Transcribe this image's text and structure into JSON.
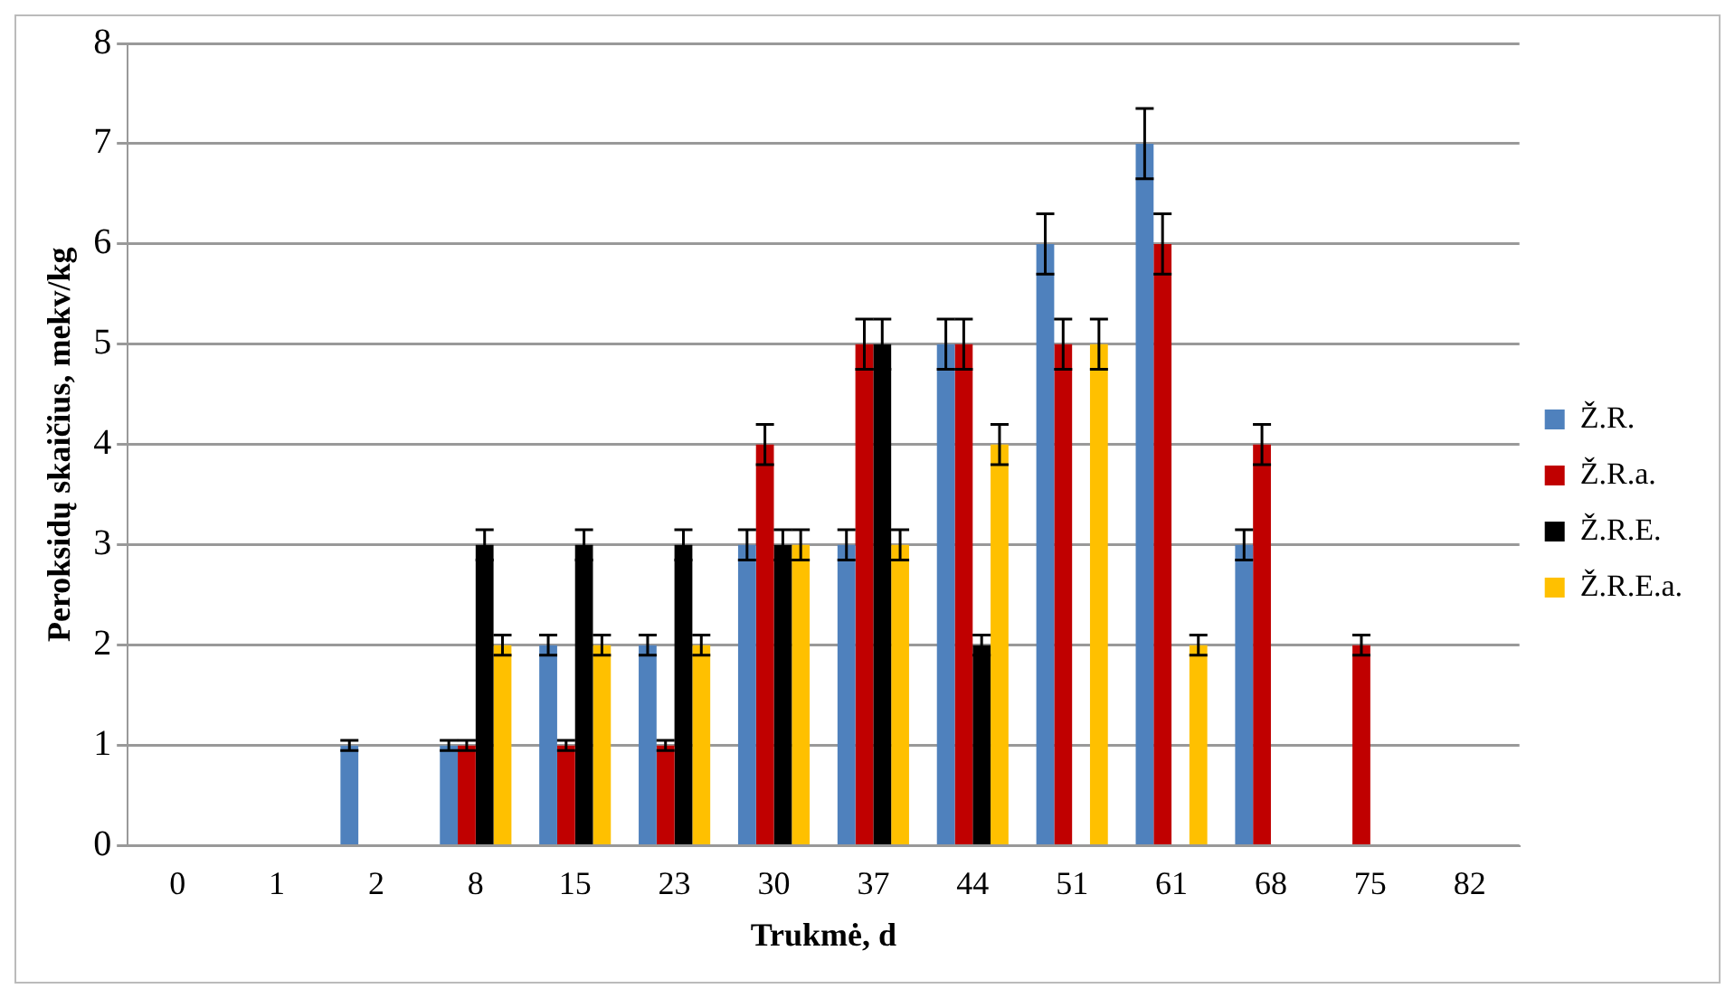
{
  "chart_data": {
    "type": "bar",
    "xlabel": "Trukmė, d",
    "ylabel": "Peroksidų skaičius, mekv/kg",
    "categories": [
      "0",
      "1",
      "2",
      "8",
      "15",
      "23",
      "30",
      "37",
      "44",
      "51",
      "61",
      "68",
      "75",
      "82"
    ],
    "series": [
      {
        "name": "Ž.R.",
        "color": "#4f81bd",
        "values": [
          0,
          0,
          1,
          1,
          2,
          2,
          3,
          3,
          5,
          6,
          7,
          3,
          0,
          0
        ],
        "errors": [
          null,
          null,
          0.05,
          0.05,
          0.1,
          0.1,
          0.15,
          0.15,
          0.25,
          0.3,
          0.35,
          0.15,
          null,
          null
        ]
      },
      {
        "name": "Ž.R.a.",
        "color": "#c00000",
        "values": [
          0,
          0,
          0,
          1,
          1,
          1,
          4,
          5,
          5,
          5,
          6,
          4,
          2,
          0
        ],
        "errors": [
          null,
          null,
          null,
          0.05,
          0.05,
          0.05,
          0.2,
          0.25,
          0.25,
          0.25,
          0.3,
          0.2,
          0.1,
          null
        ]
      },
      {
        "name": "Ž.R.E.",
        "color": "#000000",
        "values": [
          0,
          0,
          0,
          3,
          3,
          3,
          3,
          5,
          2,
          0,
          0,
          0,
          0,
          0
        ],
        "errors": [
          null,
          null,
          null,
          0.15,
          0.15,
          0.15,
          0.15,
          0.25,
          0.1,
          null,
          null,
          null,
          null,
          null
        ]
      },
      {
        "name": "Ž.R.E.a.",
        "color": "#ffc000",
        "values": [
          0,
          0,
          0,
          2,
          2,
          2,
          3,
          3,
          4,
          5,
          2,
          0,
          0,
          0
        ],
        "errors": [
          null,
          null,
          null,
          0.1,
          0.1,
          0.1,
          0.15,
          0.15,
          0.2,
          0.25,
          0.1,
          null,
          null,
          null
        ]
      }
    ],
    "ylim": [
      0,
      8
    ],
    "yticks": [
      0,
      1,
      2,
      3,
      4,
      5,
      6,
      7,
      8
    ],
    "grid": "y",
    "legend": "right"
  }
}
